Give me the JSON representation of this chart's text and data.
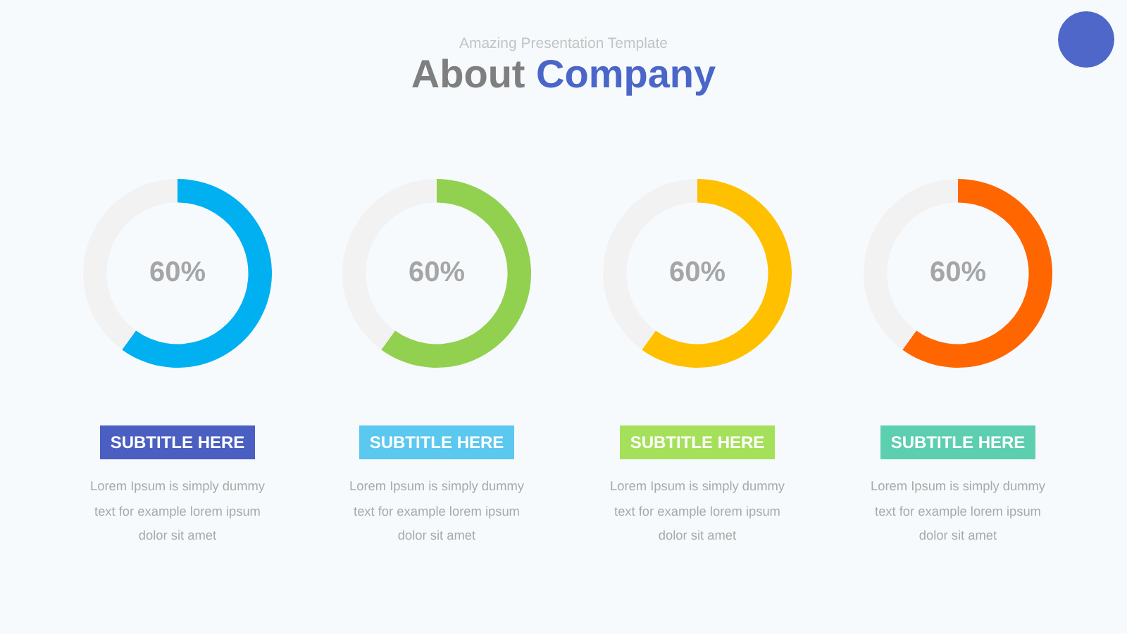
{
  "chart_data": [
    {
      "type": "other",
      "title": "About Company",
      "subtitle": "Amazing Presentation Template"
    },
    {
      "type": "donut",
      "title": "SUBTITLE HERE",
      "categories": [
        null,
        null
      ],
      "values": [
        60,
        40
      ],
      "colors": [
        "#00b0f0",
        "#f2f2f2"
      ],
      "value_labels": [
        "60%",
        null
      ],
      "annotations": [
        "Lorem Ipsum is simply dummy text for example lorem ipsum dolor sit amet"
      ]
    },
    {
      "type": "donut",
      "title": "SUBTITLE HERE",
      "categories": [
        null,
        null
      ],
      "values": [
        60,
        40
      ],
      "colors": [
        "#92d050",
        "#f2f2f2"
      ],
      "value_labels": [
        "60%",
        null
      ],
      "annotations": [
        "Lorem Ipsum is simply dummy text for example lorem ipsum dolor sit amet"
      ]
    },
    {
      "type": "donut",
      "title": "SUBTITLE HERE",
      "categories": [
        null,
        null
      ],
      "values": [
        60,
        40
      ],
      "colors": [
        "#ffc000",
        "#f2f2f2"
      ],
      "value_labels": [
        "60%",
        null
      ],
      "annotations": [
        "Lorem Ipsum is simply dummy text for example lorem ipsum dolor sit amet"
      ]
    },
    {
      "type": "donut",
      "title": "SUBTITLE HERE",
      "categories": [
        null,
        null
      ],
      "values": [
        60,
        40
      ],
      "colors": [
        "#ff6600",
        "#f2f2f2"
      ],
      "value_labels": [
        "60%",
        null
      ],
      "annotations": [
        "Lorem Ipsum is simply dummy text for example lorem ipsum dolor sit amet"
      ]
    }
  ]
}
